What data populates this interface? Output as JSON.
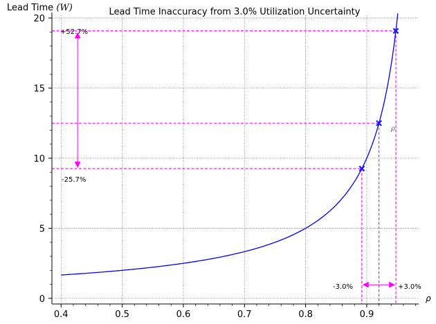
{
  "chart_data": {
    "type": "line",
    "title": "Lead Time Inaccuracy from 3.0% Utilization Uncertainty",
    "ylabel": {
      "text": "Lead Time",
      "symbol": "W"
    },
    "xlabel": {
      "symbol": "ρ"
    },
    "xlim": [
      0.385,
      0.985
    ],
    "ylim": [
      -0.4,
      20.2
    ],
    "grid": true,
    "xticks": [
      0.4,
      0.5,
      0.6,
      0.7,
      0.8,
      0.9
    ],
    "xtick_labels": [
      "0.4",
      "0.5",
      "0.6",
      "0.7",
      "0.8",
      "0.9"
    ],
    "yticks": [
      0,
      5,
      10,
      15,
      20
    ],
    "ytick_labels": [
      "0",
      "5",
      "10",
      "15",
      "20"
    ],
    "series": [
      {
        "function": "1/(1-x)",
        "x_range": [
          0.4,
          0.9508
        ],
        "color": "#0000ff"
      }
    ],
    "highlight_points": [
      {
        "x": 0.892,
        "y": 9.26
      },
      {
        "x": 0.92,
        "y": 12.5
      },
      {
        "x": 0.9476,
        "y": 19.08
      }
    ],
    "guide_color": "#ff00ff",
    "annotations": {
      "upper_pct": "+52.7%",
      "lower_pct": "-25.7%",
      "left_pct": "-3.0%",
      "right_pct": "+3.0%",
      "rho_marker": "ρ",
      "arrow_x": 0.427,
      "arrow_y": 0.97
    }
  }
}
